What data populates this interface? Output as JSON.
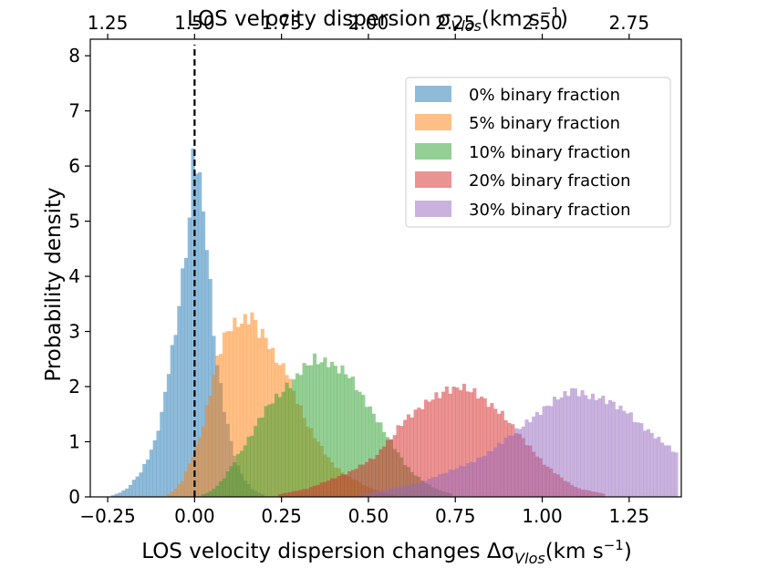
{
  "chart_data": {
    "type": "histogram",
    "xlabel": "LOS velocity dispersion changes Δσ",
    "xlabel_sub": "Vlos",
    "xlabel_units": "(km s",
    "xlabel_units_sup": "−1",
    "xlabel_units_close": ")",
    "ylabel": "Probability density",
    "top_xlabel": "LOS velocity dispersion σ",
    "top_xlabel_sub": "Vlos",
    "top_xlabel_units": "(km s",
    "top_xlabel_units_sup": "−1",
    "top_xlabel_units_close": ")",
    "xlim": [
      -0.3,
      1.4
    ],
    "ylim": [
      0,
      8.3
    ],
    "top_xlim": [
      1.2,
      2.9
    ],
    "x_ticks": [
      -0.25,
      0.0,
      0.25,
      0.5,
      0.75,
      1.0,
      1.25
    ],
    "x_tick_labels": [
      "−0.25",
      "0.00",
      "0.25",
      "0.50",
      "0.75",
      "1.00",
      "1.25"
    ],
    "top_x_ticks": [
      1.25,
      1.5,
      1.75,
      2.0,
      2.25,
      2.5,
      2.75
    ],
    "top_x_tick_labels": [
      "1.25",
      "1.50",
      "1.75",
      "2.00",
      "2.25",
      "2.50",
      "2.75"
    ],
    "y_ticks": [
      0,
      1,
      2,
      3,
      4,
      5,
      6,
      7,
      8
    ],
    "y_tick_labels": [
      "0",
      "1",
      "2",
      "3",
      "4",
      "5",
      "6",
      "7",
      "8"
    ],
    "reference_line": {
      "x": 0.0,
      "y_max": 8.2,
      "style": "dashed",
      "color": "#000000"
    },
    "bin_width": 0.01,
    "legend_position": "top-right",
    "series": [
      {
        "name": "0% binary fraction",
        "color": "#1f77b4",
        "opacity": 0.5,
        "values": [
          [
            -0.24,
            0.03
          ],
          [
            -0.22,
            0.08
          ],
          [
            -0.2,
            0.15
          ],
          [
            -0.18,
            0.3
          ],
          [
            -0.16,
            0.45
          ],
          [
            -0.14,
            0.7
          ],
          [
            -0.12,
            1.0
          ],
          [
            -0.1,
            1.5
          ],
          [
            -0.08,
            2.3
          ],
          [
            -0.06,
            3.0
          ],
          [
            -0.04,
            4.0
          ],
          [
            -0.02,
            5.0
          ],
          [
            -0.01,
            6.2
          ],
          [
            0.0,
            6.1
          ],
          [
            0.01,
            5.7
          ],
          [
            0.02,
            5.2
          ],
          [
            0.03,
            4.6
          ],
          [
            0.04,
            3.8
          ],
          [
            0.05,
            3.0
          ],
          [
            0.06,
            2.4
          ],
          [
            0.08,
            1.6
          ],
          [
            0.1,
            1.0
          ],
          [
            0.12,
            0.55
          ],
          [
            0.14,
            0.3
          ],
          [
            0.16,
            0.15
          ],
          [
            0.18,
            0.07
          ],
          [
            0.2,
            0.03
          ]
        ]
      },
      {
        "name": "5% binary fraction",
        "color": "#ff7f0e",
        "opacity": 0.5,
        "values": [
          [
            -0.08,
            0.05
          ],
          [
            -0.06,
            0.15
          ],
          [
            -0.04,
            0.3
          ],
          [
            -0.02,
            0.6
          ],
          [
            0.0,
            0.9
          ],
          [
            0.02,
            1.3
          ],
          [
            0.04,
            1.9
          ],
          [
            0.06,
            2.5
          ],
          [
            0.08,
            2.9
          ],
          [
            0.1,
            3.1
          ],
          [
            0.12,
            3.15
          ],
          [
            0.14,
            3.2
          ],
          [
            0.16,
            3.3
          ],
          [
            0.18,
            3.0
          ],
          [
            0.2,
            2.9
          ],
          [
            0.22,
            2.6
          ],
          [
            0.24,
            2.4
          ],
          [
            0.26,
            2.3
          ],
          [
            0.28,
            1.9
          ],
          [
            0.3,
            1.6
          ],
          [
            0.32,
            1.3
          ],
          [
            0.34,
            1.1
          ],
          [
            0.36,
            0.9
          ],
          [
            0.38,
            0.7
          ],
          [
            0.4,
            0.55
          ],
          [
            0.42,
            0.45
          ],
          [
            0.44,
            0.35
          ],
          [
            0.46,
            0.3
          ],
          [
            0.48,
            0.22
          ],
          [
            0.5,
            0.16
          ],
          [
            0.52,
            0.12
          ],
          [
            0.54,
            0.08
          ],
          [
            0.56,
            0.05
          ],
          [
            0.58,
            0.03
          ]
        ]
      },
      {
        "name": "10% binary fraction",
        "color": "#2ca02c",
        "opacity": 0.5,
        "values": [
          [
            0.02,
            0.05
          ],
          [
            0.04,
            0.1
          ],
          [
            0.06,
            0.2
          ],
          [
            0.08,
            0.35
          ],
          [
            0.1,
            0.55
          ],
          [
            0.12,
            0.75
          ],
          [
            0.14,
            0.95
          ],
          [
            0.16,
            1.15
          ],
          [
            0.18,
            1.4
          ],
          [
            0.2,
            1.6
          ],
          [
            0.22,
            1.75
          ],
          [
            0.24,
            1.85
          ],
          [
            0.26,
            2.0
          ],
          [
            0.28,
            2.1
          ],
          [
            0.3,
            2.3
          ],
          [
            0.32,
            2.4
          ],
          [
            0.34,
            2.5
          ],
          [
            0.36,
            2.45
          ],
          [
            0.38,
            2.45
          ],
          [
            0.4,
            2.35
          ],
          [
            0.42,
            2.3
          ],
          [
            0.44,
            2.2
          ],
          [
            0.46,
            2.0
          ],
          [
            0.48,
            1.8
          ],
          [
            0.5,
            1.6
          ],
          [
            0.52,
            1.4
          ],
          [
            0.54,
            1.2
          ],
          [
            0.56,
            1.0
          ],
          [
            0.58,
            0.8
          ],
          [
            0.6,
            0.6
          ],
          [
            0.62,
            0.45
          ],
          [
            0.64,
            0.35
          ],
          [
            0.66,
            0.25
          ],
          [
            0.68,
            0.18
          ],
          [
            0.7,
            0.12
          ],
          [
            0.72,
            0.08
          ],
          [
            0.74,
            0.05
          ]
        ]
      },
      {
        "name": "20% binary fraction",
        "color": "#d62728",
        "opacity": 0.5,
        "values": [
          [
            0.24,
            0.05
          ],
          [
            0.28,
            0.1
          ],
          [
            0.32,
            0.15
          ],
          [
            0.36,
            0.25
          ],
          [
            0.4,
            0.35
          ],
          [
            0.44,
            0.45
          ],
          [
            0.48,
            0.6
          ],
          [
            0.52,
            0.75
          ],
          [
            0.54,
            0.95
          ],
          [
            0.56,
            1.05
          ],
          [
            0.58,
            1.25
          ],
          [
            0.6,
            1.4
          ],
          [
            0.62,
            1.5
          ],
          [
            0.64,
            1.6
          ],
          [
            0.66,
            1.7
          ],
          [
            0.68,
            1.8
          ],
          [
            0.7,
            1.85
          ],
          [
            0.72,
            1.95
          ],
          [
            0.74,
            1.95
          ],
          [
            0.76,
            2.0
          ],
          [
            0.78,
            1.95
          ],
          [
            0.8,
            1.9
          ],
          [
            0.82,
            1.8
          ],
          [
            0.84,
            1.7
          ],
          [
            0.86,
            1.6
          ],
          [
            0.88,
            1.5
          ],
          [
            0.9,
            1.35
          ],
          [
            0.92,
            1.2
          ],
          [
            0.94,
            1.05
          ],
          [
            0.96,
            0.9
          ],
          [
            0.98,
            0.75
          ],
          [
            1.0,
            0.6
          ],
          [
            1.02,
            0.5
          ],
          [
            1.04,
            0.4
          ],
          [
            1.06,
            0.3
          ],
          [
            1.08,
            0.22
          ],
          [
            1.1,
            0.15
          ],
          [
            1.14,
            0.1
          ],
          [
            1.18,
            0.05
          ]
        ]
      },
      {
        "name": "30% binary fraction",
        "color": "#9467bd",
        "opacity": 0.5,
        "values": [
          [
            0.48,
            0.05
          ],
          [
            0.52,
            0.1
          ],
          [
            0.56,
            0.15
          ],
          [
            0.6,
            0.2
          ],
          [
            0.64,
            0.25
          ],
          [
            0.68,
            0.35
          ],
          [
            0.72,
            0.45
          ],
          [
            0.76,
            0.55
          ],
          [
            0.8,
            0.65
          ],
          [
            0.84,
            0.8
          ],
          [
            0.86,
            0.9
          ],
          [
            0.88,
            1.0
          ],
          [
            0.9,
            1.1
          ],
          [
            0.92,
            1.2
          ],
          [
            0.94,
            1.3
          ],
          [
            0.96,
            1.4
          ],
          [
            0.98,
            1.5
          ],
          [
            1.0,
            1.6
          ],
          [
            1.02,
            1.7
          ],
          [
            1.04,
            1.8
          ],
          [
            1.06,
            1.85
          ],
          [
            1.08,
            1.95
          ],
          [
            1.1,
            1.9
          ],
          [
            1.12,
            1.85
          ],
          [
            1.14,
            1.8
          ],
          [
            1.16,
            1.8
          ],
          [
            1.18,
            1.75
          ],
          [
            1.2,
            1.7
          ],
          [
            1.22,
            1.6
          ],
          [
            1.24,
            1.55
          ],
          [
            1.26,
            1.4
          ],
          [
            1.28,
            1.3
          ],
          [
            1.3,
            1.2
          ],
          [
            1.32,
            1.1
          ],
          [
            1.34,
            1.0
          ],
          [
            1.36,
            0.9
          ],
          [
            1.38,
            0.8
          ],
          [
            1.39,
            0.75
          ]
        ]
      }
    ]
  }
}
